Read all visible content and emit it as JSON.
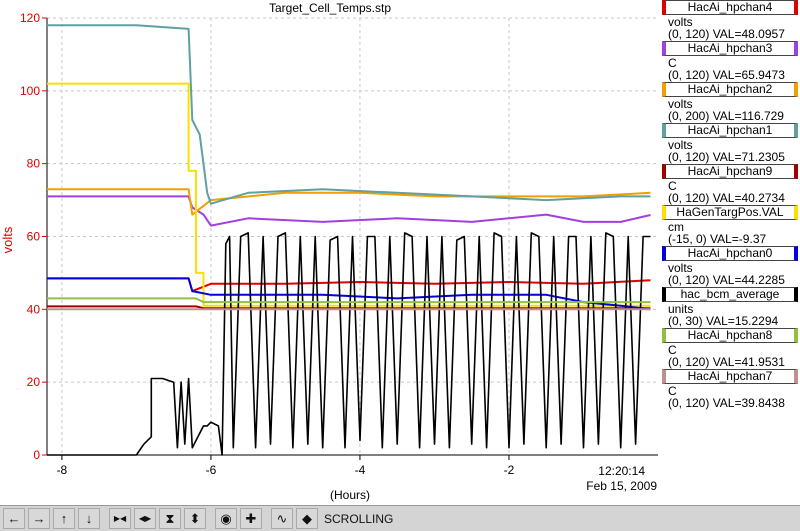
{
  "chart_data": {
    "type": "line",
    "title": "Target_Cell_Temps.stp",
    "xlabel": "(Hours)",
    "ylabel": "volts",
    "xlim": [
      -8.2,
      0.0
    ],
    "ylim": [
      0,
      120
    ],
    "x_ticks": [
      -8,
      -6,
      -4,
      -2
    ],
    "x_tick_labels": [
      "-8",
      "-6",
      "-4",
      "-2"
    ],
    "y_ticks": [
      0,
      20,
      40,
      60,
      80,
      100,
      120
    ],
    "y_tick_labels": [
      "0",
      "20",
      "40",
      "60",
      "80",
      "100",
      "120"
    ],
    "time_label": "12:20:14",
    "date_label": "Feb 15, 2009",
    "grid": true,
    "legend_position": "right",
    "series": [
      {
        "name": "HacAi_hpchan4",
        "color": "#e00000",
        "units": "volts",
        "range": "(0, 120)",
        "value_label": "VAL=48.0957",
        "x": [
          -8.2,
          -6.3,
          -6.25,
          -6.0,
          -5.0,
          -4.0,
          -3.0,
          -2.0,
          -1.0,
          -0.1
        ],
        "y": [
          48.5,
          48.5,
          45,
          47,
          47,
          47.5,
          47,
          47.5,
          47,
          48
        ]
      },
      {
        "name": "HacAi_hpchan3",
        "color": "#a040e0",
        "units": "C",
        "range": "(0, 120)",
        "value_label": "VAL=65.9473",
        "x": [
          -8.2,
          -6.3,
          -6.25,
          -6.1,
          -6.0,
          -5.5,
          -4.5,
          -3.5,
          -2.5,
          -1.5,
          -1.0,
          -0.5,
          -0.1
        ],
        "y": [
          71,
          71,
          68,
          66,
          63,
          65,
          64,
          65,
          64,
          66,
          64,
          64,
          65.9
        ]
      },
      {
        "name": "HacAi_hpchan2",
        "color": "#f0a000",
        "units": "volts",
        "range": "(0, 200)",
        "value_label": "VAL=116.729",
        "x": [
          -8.2,
          -6.3,
          -6.25,
          -6.0,
          -5.0,
          -4.0,
          -3.0,
          -2.0,
          -1.0,
          -0.1
        ],
        "y": [
          73,
          73,
          66,
          70,
          72,
          72,
          71,
          71,
          71,
          72
        ]
      },
      {
        "name": "HacAi_hpchan1",
        "color": "#60a0a0",
        "units": "volts",
        "range": "(0, 120)",
        "value_label": "VAL=71.2305",
        "x": [
          -8.2,
          -7.0,
          -6.3,
          -6.25,
          -6.15,
          -6.05,
          -6.0,
          -5.5,
          -4.5,
          -3.5,
          -2.5,
          -1.5,
          -0.5,
          -0.1
        ],
        "y": [
          118,
          118,
          117,
          92,
          88,
          72,
          69,
          72,
          73,
          72,
          71,
          70,
          71,
          71
        ]
      },
      {
        "name": "HacAi_hpchan9",
        "color": "#a00000",
        "units": "C",
        "range": "(0, 120)",
        "value_label": "VAL=40.2734",
        "x": [
          -8.2,
          -6.2,
          -6.1,
          -0.1
        ],
        "y": [
          40.8,
          40.8,
          40.3,
          40.3
        ]
      },
      {
        "name": "HaGenTargPos.VAL",
        "color": "#f8e000",
        "units": "cm",
        "range": "(-15, 0)",
        "value_label": "VAL=-9.37",
        "x": [
          -8.2,
          -6.3,
          -6.3,
          -6.2,
          -6.2,
          -6.1,
          -6.1,
          -0.1
        ],
        "y": [
          102,
          102,
          78,
          78,
          50,
          50,
          41,
          41
        ]
      },
      {
        "name": "HacAi_hpchan0",
        "color": "#0000e0",
        "units": "volts",
        "range": "(0, 120)",
        "value_label": "VAL=44.2285",
        "x": [
          -8.2,
          -6.3,
          -6.25,
          -6.0,
          -5.5,
          -4.5,
          -3.5,
          -2.5,
          -1.5,
          -1.0,
          -0.5,
          -0.1
        ],
        "y": [
          48.5,
          48.5,
          45,
          44,
          44,
          44,
          43,
          44,
          44,
          42,
          41,
          40
        ]
      },
      {
        "name": "hac_bcm_average",
        "color": "#000000",
        "units": "units",
        "range": "(0, 30)",
        "value_label": "VAL=15.2294",
        "x": [
          -8.2,
          -7.0,
          -6.9,
          -6.8,
          -6.8,
          -6.65,
          -6.5,
          -6.45,
          -6.4,
          -6.35,
          -6.3,
          -6.25,
          -6.1,
          -6.05,
          -6.0,
          -5.9,
          -5.85,
          -5.8,
          -5.75,
          -5.7,
          -5.6,
          -5.5,
          -5.4,
          -5.3,
          -5.2,
          -5.1,
          -5.0,
          -4.9,
          -4.8,
          -4.7,
          -4.6,
          -4.5,
          -4.4,
          -4.3,
          -4.2,
          -4.1,
          -4.0,
          -3.9,
          -3.8,
          -3.7,
          -3.6,
          -3.5,
          -3.4,
          -3.3,
          -3.2,
          -3.1,
          -3.0,
          -2.9,
          -2.8,
          -2.7,
          -2.6,
          -2.5,
          -2.4,
          -2.3,
          -2.2,
          -2.1,
          -2.0,
          -1.9,
          -1.8,
          -1.7,
          -1.6,
          -1.5,
          -1.4,
          -1.3,
          -1.2,
          -1.1,
          -1.0,
          -0.9,
          -0.8,
          -0.7,
          -0.6,
          -0.5,
          -0.4,
          -0.3,
          -0.2,
          -0.1
        ],
        "y": [
          0,
          0,
          3,
          5,
          21,
          21,
          20,
          2,
          20,
          3,
          21,
          2,
          8,
          8,
          9,
          8,
          0,
          58,
          60,
          2,
          60,
          61,
          2,
          60,
          3,
          60,
          61,
          2,
          60,
          3,
          60,
          2,
          59,
          60,
          2,
          60,
          4,
          60,
          60,
          2,
          60,
          3,
          61,
          60,
          2,
          60,
          3,
          60,
          2,
          59,
          60,
          3,
          60,
          2,
          61,
          60,
          2,
          60,
          3,
          61,
          60,
          2,
          60,
          3,
          60,
          60,
          2,
          60,
          3,
          61,
          60,
          2,
          60,
          3,
          60,
          60
        ]
      },
      {
        "name": "HacAi_hpchan8",
        "color": "#90c040",
        "units": "C",
        "range": "(0, 120)",
        "value_label": "VAL=41.9531",
        "x": [
          -8.2,
          -6.2,
          -6.1,
          -0.1
        ],
        "y": [
          43,
          43,
          42,
          42
        ]
      },
      {
        "name": "HacAi_hpchan7",
        "color": "#c09090",
        "units": "C",
        "range": "(0, 120)",
        "value_label": "VAL=39.8438",
        "x": [
          -8.2,
          -0.1
        ],
        "y": [
          40,
          40
        ]
      }
    ]
  },
  "toolbar": {
    "icons": [
      "arrow-left-icon",
      "arrow-right-icon",
      "arrow-up-icon",
      "arrow-down-icon",
      "expand-horizontal-icon",
      "compress-horizontal-icon",
      "expand-vertical-icon",
      "compress-vertical-icon",
      "record-icon",
      "add-icon",
      "zigzag-icon",
      "pin-icon"
    ],
    "status": "SCROLLING"
  }
}
